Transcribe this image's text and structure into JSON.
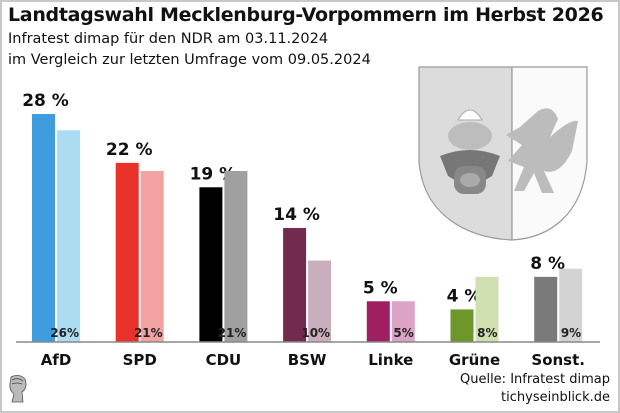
{
  "header": {
    "title": "Landtagswahl Mecklenburg-Vorpommern im Herbst 2026",
    "subtitle1": "Infratest dimap für den NDR am 03.11.2024",
    "subtitle2": "im Vergleich zur letzten Umfrage vom 09.05.2024"
  },
  "footer": {
    "source": "Quelle: Infratest dimap",
    "site": "tichyseinblick.de"
  },
  "chart_data": {
    "type": "bar",
    "title": "Landtagswahl Mecklenburg-Vorpommern im Herbst 2026",
    "categories": [
      "AfD",
      "SPD",
      "CDU",
      "BSW",
      "Linke",
      "Grüne",
      "Sonst."
    ],
    "series": [
      {
        "name": "03.11.2024",
        "values": [
          28,
          22,
          19,
          14,
          5,
          4,
          8
        ],
        "labels": [
          "28 %",
          "22 %",
          "19 %",
          "14 %",
          "5 %",
          "4 %",
          "8 %"
        ],
        "colors": [
          "#3f9ddf",
          "#e8322a",
          "#000000",
          "#722a4f",
          "#a01f62",
          "#6f962b",
          "#7a7a7a"
        ]
      },
      {
        "name": "09.05.2024",
        "values": [
          26,
          21,
          21,
          10,
          5,
          8,
          9
        ],
        "labels": [
          "26%",
          "21%",
          "21%",
          "10%",
          "5%",
          "8%",
          "9%"
        ],
        "colors": [
          "#acdcf2",
          "#f2a3a1",
          "#a0a0a0",
          "#c9aebd",
          "#dca3c7",
          "#cfdfb0",
          "#d3d3d3"
        ]
      }
    ],
    "ylim": [
      0,
      30
    ],
    "grid": false
  }
}
